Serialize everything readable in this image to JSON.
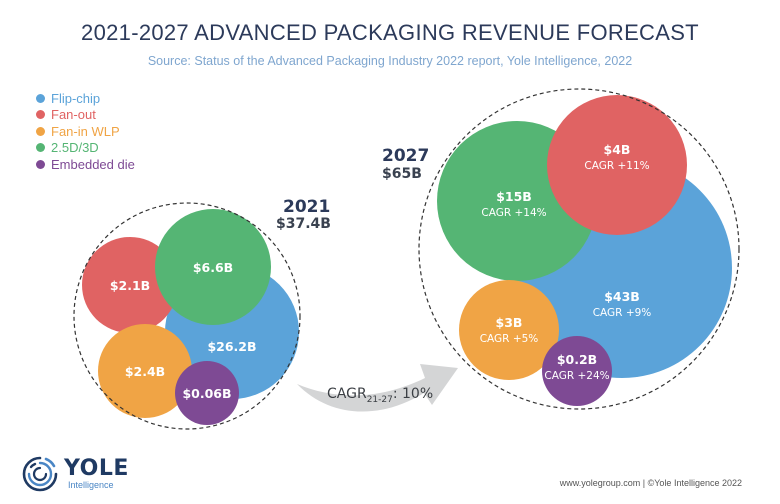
{
  "title": "2021-2027 ADVANCED PACKAGING REVENUE FORECAST",
  "subtitle": "Source: Status of the Advanced Packaging Industry 2022 report, Yole Intelligence, 2022",
  "legend": [
    {
      "label": "Flip-chip",
      "color": "#5ba3d9"
    },
    {
      "label": "Fan-out",
      "color": "#e06363"
    },
    {
      "label": "Fan-in WLP",
      "color": "#f0a445"
    },
    {
      "label": "2.5D/3D",
      "color": "#55b574"
    },
    {
      "label": "Embedded die",
      "color": "#7e4a94"
    }
  ],
  "cagr": {
    "prefix": "CAGR",
    "sub": "21-27",
    "value": ": 10%"
  },
  "footer": {
    "logo_main": "YOLE",
    "logo_sub": "Intelligence",
    "credit": "www.yolegroup.com | ©Yole Intelligence 2022"
  },
  "chart_data": {
    "type": "bubble",
    "title": "2021-2027 ADVANCED PACKAGING REVENUE FORECAST",
    "unit": "$B",
    "groups": [
      {
        "year": "2021",
        "total_label": "$37.4B",
        "total": 37.4,
        "items": [
          {
            "segment": "Flip-chip",
            "value": 26.2,
            "label": "$26.2B"
          },
          {
            "segment": "Fan-out",
            "value": 2.1,
            "label": "$2.1B"
          },
          {
            "segment": "Fan-in WLP",
            "value": 2.4,
            "label": "$2.4B"
          },
          {
            "segment": "2.5D/3D",
            "value": 6.6,
            "label": "$6.6B"
          },
          {
            "segment": "Embedded die",
            "value": 0.06,
            "label": "$0.06B"
          }
        ]
      },
      {
        "year": "2027",
        "total_label": "$65B",
        "total": 65,
        "items": [
          {
            "segment": "Flip-chip",
            "value": 43,
            "label": "$43B",
            "cagr": "CAGR +9%"
          },
          {
            "segment": "Fan-out",
            "value": 4,
            "label": "$4B",
            "cagr": "CAGR +11%"
          },
          {
            "segment": "Fan-in WLP",
            "value": 3,
            "label": "$3B",
            "cagr": "CAGR +5%"
          },
          {
            "segment": "2.5D/3D",
            "value": 15,
            "label": "$15B",
            "cagr": "CAGR +14%"
          },
          {
            "segment": "Embedded die",
            "value": 0.2,
            "label": "$0.2B",
            "cagr": "CAGR +24%"
          }
        ]
      }
    ],
    "overall_cagr": "10%",
    "overall_cagr_period": "21-27"
  }
}
